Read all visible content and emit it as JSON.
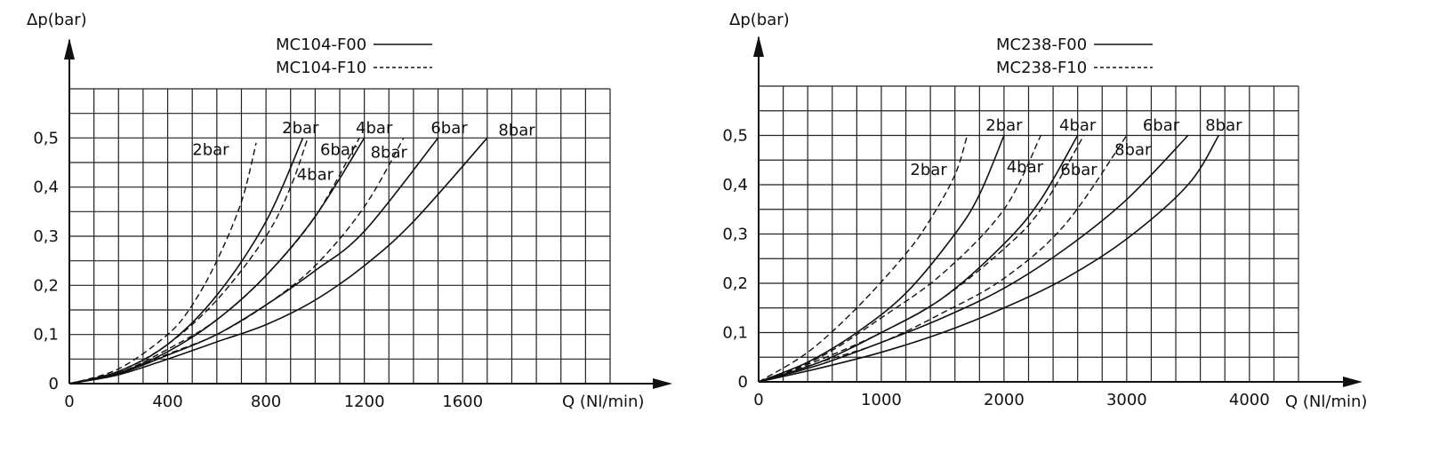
{
  "chart_data": [
    {
      "type": "line",
      "ylabel": "Δp(bar)",
      "xlabel": "Q (Nl/min)",
      "xlim": [
        0,
        2200
      ],
      "ylim": [
        0,
        0.6
      ],
      "grid": true,
      "x_ticks": [
        0,
        400,
        800,
        1200,
        1600
      ],
      "x_tick_labels": [
        "0",
        "400",
        "800",
        "1200",
        "1600"
      ],
      "y_ticks": [
        0,
        0.1,
        0.2,
        0.3,
        0.4,
        0.5
      ],
      "y_tick_labels": [
        "0",
        "0,1",
        "0,2",
        "0,3",
        "0,4",
        "0,5"
      ],
      "legend": [
        {
          "name": "MC104-F00",
          "style": "solid"
        },
        {
          "name": "MC104-F10",
          "style": "dashed"
        }
      ],
      "legend_placement": "top-center",
      "series": [
        {
          "label": "2bar",
          "style": "solid",
          "x": [
            0,
            200,
            400,
            600,
            800,
            950
          ],
          "y": [
            0,
            0.025,
            0.08,
            0.18,
            0.33,
            0.5
          ]
        },
        {
          "label": "4bar",
          "style": "solid",
          "x": [
            0,
            200,
            400,
            600,
            800,
            1000,
            1200
          ],
          "y": [
            0,
            0.022,
            0.065,
            0.13,
            0.22,
            0.34,
            0.5
          ]
        },
        {
          "label": "6bar",
          "style": "solid",
          "x": [
            0,
            200,
            400,
            600,
            800,
            1000,
            1200,
            1500
          ],
          "y": [
            0,
            0.02,
            0.058,
            0.1,
            0.16,
            0.23,
            0.31,
            0.5
          ]
        },
        {
          "label": "8bar",
          "style": "solid",
          "x": [
            0,
            200,
            400,
            600,
            800,
            1000,
            1200,
            1400,
            1700
          ],
          "y": [
            0,
            0.018,
            0.05,
            0.085,
            0.12,
            0.17,
            0.24,
            0.33,
            0.5
          ]
        },
        {
          "label": "2bar",
          "style": "dashed",
          "x": [
            0,
            200,
            400,
            500,
            600,
            700,
            760
          ],
          "y": [
            0,
            0.03,
            0.1,
            0.16,
            0.25,
            0.37,
            0.49
          ]
        },
        {
          "label": "4bar",
          "style": "dashed",
          "x": [
            0,
            200,
            400,
            600,
            800,
            900,
            970
          ],
          "y": [
            0,
            0.025,
            0.08,
            0.17,
            0.3,
            0.4,
            0.5
          ]
        },
        {
          "label": "6bar",
          "style": "dashed",
          "x": [
            0,
            200,
            400,
            600,
            800,
            1000,
            1180
          ],
          "y": [
            0,
            0.022,
            0.07,
            0.13,
            0.22,
            0.34,
            0.5
          ]
        },
        {
          "label": "8bar",
          "style": "dashed",
          "x": [
            0,
            200,
            400,
            600,
            800,
            1000,
            1200,
            1360
          ],
          "y": [
            0,
            0.02,
            0.06,
            0.1,
            0.16,
            0.24,
            0.36,
            0.5
          ]
        }
      ],
      "curve_labels": [
        {
          "text": "2bar",
          "x": 575,
          "y": 0.465
        },
        {
          "text": "2bar",
          "x": 940,
          "y": 0.51
        },
        {
          "text": "4bar",
          "x": 1240,
          "y": 0.51
        },
        {
          "text": "6bar",
          "x": 1545,
          "y": 0.51
        },
        {
          "text": "8bar",
          "x": 1820,
          "y": 0.505
        },
        {
          "text": "6bar",
          "x": 1095,
          "y": 0.465
        },
        {
          "text": "8bar",
          "x": 1300,
          "y": 0.46
        },
        {
          "text": "4bar",
          "x": 1000,
          "y": 0.415
        }
      ]
    },
    {
      "type": "line",
      "ylabel": "Δp(bar)",
      "xlabel": "Q (Nl/min)",
      "xlim": [
        0,
        4400
      ],
      "ylim": [
        0,
        0.6
      ],
      "grid": true,
      "x_ticks": [
        0,
        1000,
        2000,
        3000,
        4000
      ],
      "x_tick_labels": [
        "0",
        "1000",
        "2000",
        "3000",
        "4000"
      ],
      "y_ticks": [
        0,
        0.1,
        0.2,
        0.3,
        0.4,
        0.5
      ],
      "y_tick_labels": [
        "0",
        "0,1",
        "0,2",
        "0,3",
        "0,4",
        "0,5"
      ],
      "legend": [
        {
          "name": "MC238-F00",
          "style": "solid"
        },
        {
          "name": "MC238-F10",
          "style": "dashed"
        }
      ],
      "legend_placement": "top-center",
      "series": [
        {
          "label": "2bar",
          "style": "solid",
          "x": [
            0,
            400,
            800,
            1200,
            1600,
            1800,
            2000
          ],
          "y": [
            0,
            0.04,
            0.1,
            0.18,
            0.3,
            0.38,
            0.5
          ]
        },
        {
          "label": "4bar",
          "style": "solid",
          "x": [
            0,
            500,
            1000,
            1500,
            2000,
            2300,
            2600
          ],
          "y": [
            0,
            0.04,
            0.1,
            0.17,
            0.28,
            0.37,
            0.5
          ]
        },
        {
          "label": "6bar",
          "style": "solid",
          "x": [
            0,
            500,
            1000,
            1500,
            2000,
            2500,
            3000,
            3500
          ],
          "y": [
            0,
            0.035,
            0.08,
            0.13,
            0.19,
            0.27,
            0.37,
            0.5
          ]
        },
        {
          "label": "8bar",
          "style": "solid",
          "x": [
            0,
            500,
            1000,
            1500,
            2000,
            2500,
            3000,
            3500,
            3750
          ],
          "y": [
            0,
            0.028,
            0.06,
            0.1,
            0.15,
            0.21,
            0.29,
            0.4,
            0.5
          ]
        },
        {
          "label": "2bar",
          "style": "dashed",
          "x": [
            0,
            400,
            800,
            1200,
            1400,
            1600,
            1700
          ],
          "y": [
            0,
            0.06,
            0.15,
            0.26,
            0.33,
            0.42,
            0.5
          ]
        },
        {
          "label": "4bar",
          "style": "dashed",
          "x": [
            0,
            500,
            1000,
            1500,
            2000,
            2300
          ],
          "y": [
            0,
            0.05,
            0.13,
            0.22,
            0.35,
            0.5
          ]
        },
        {
          "label": "6bar",
          "style": "dashed",
          "x": [
            0,
            500,
            1000,
            1500,
            2000,
            2300,
            2650
          ],
          "y": [
            0,
            0.045,
            0.1,
            0.17,
            0.27,
            0.35,
            0.5
          ]
        },
        {
          "label": "8bar",
          "style": "dashed",
          "x": [
            0,
            500,
            1000,
            1500,
            2000,
            2500,
            3000
          ],
          "y": [
            0,
            0.04,
            0.08,
            0.14,
            0.21,
            0.32,
            0.5
          ]
        }
      ],
      "curve_labels": [
        {
          "text": "2bar",
          "x": 1385,
          "y": 0.42
        },
        {
          "text": "2bar",
          "x": 2000,
          "y": 0.51
        },
        {
          "text": "4bar",
          "x": 2600,
          "y": 0.51
        },
        {
          "text": "6bar",
          "x": 3280,
          "y": 0.51
        },
        {
          "text": "8bar",
          "x": 3790,
          "y": 0.51
        },
        {
          "text": "8bar",
          "x": 3050,
          "y": 0.46
        },
        {
          "text": "4bar",
          "x": 2170,
          "y": 0.425
        },
        {
          "text": "6bar",
          "x": 2610,
          "y": 0.42
        }
      ]
    }
  ]
}
